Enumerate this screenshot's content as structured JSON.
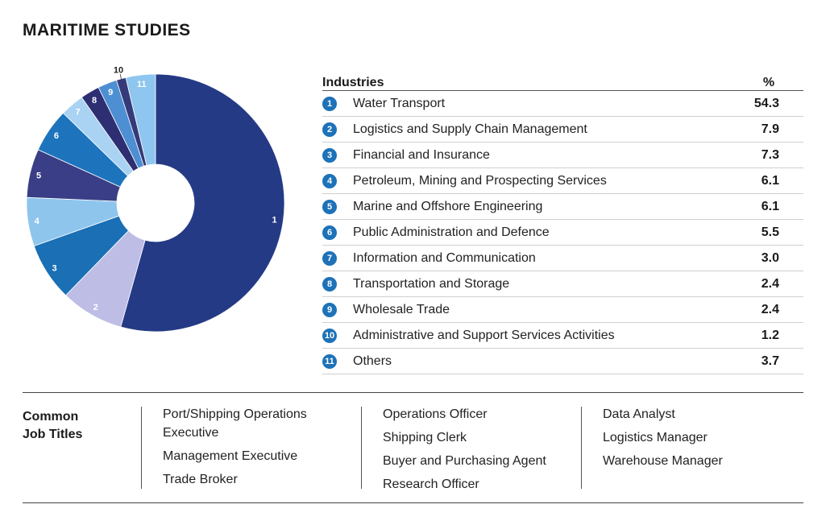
{
  "title": "MARITIME STUDIES",
  "table": {
    "header_industry": "Industries",
    "header_pct": "%"
  },
  "chart_data": {
    "type": "pie",
    "style": "donut",
    "categories": [
      "1",
      "2",
      "3",
      "4",
      "5",
      "6",
      "7",
      "8",
      "9",
      "10",
      "11"
    ],
    "labels": [
      "Water Transport",
      "Logistics and Supply Chain Management",
      "Financial and Insurance",
      "Petroleum, Mining and Prospecting Services",
      "Marine and Offshore Engineering",
      "Public Administration and Defence",
      "Information and Communication",
      "Transportation and Storage",
      "Wholesale Trade",
      "Administrative and Support Services Activities",
      "Others"
    ],
    "values": [
      54.3,
      7.9,
      7.3,
      6.1,
      6.1,
      5.5,
      3.0,
      2.4,
      2.4,
      1.2,
      3.7
    ],
    "value_labels": [
      "54.3",
      "7.9",
      "7.3",
      "6.1",
      "6.1",
      "5.5",
      "3.0",
      "2.4",
      "2.4",
      "1.2",
      "3.7"
    ],
    "colors": [
      "#243a85",
      "#bdbde6",
      "#1a6fb5",
      "#8ec5ec",
      "#3a3e86",
      "#1d74bd",
      "#a9d2f3",
      "#2e2f72",
      "#4d8fd2",
      "#353a7a",
      "#8ec6ef"
    ]
  },
  "jobs": {
    "label_line1": "Common",
    "label_line2": "Job Titles",
    "columns": [
      [
        "Port/Shipping Operations Executive",
        "Management Executive",
        "Trade Broker"
      ],
      [
        "Operations Officer",
        "Shipping Clerk",
        "Buyer and Purchasing Agent",
        "Research Officer"
      ],
      [
        "Data Analyst",
        "Logistics Manager",
        "Warehouse Manager"
      ]
    ]
  }
}
